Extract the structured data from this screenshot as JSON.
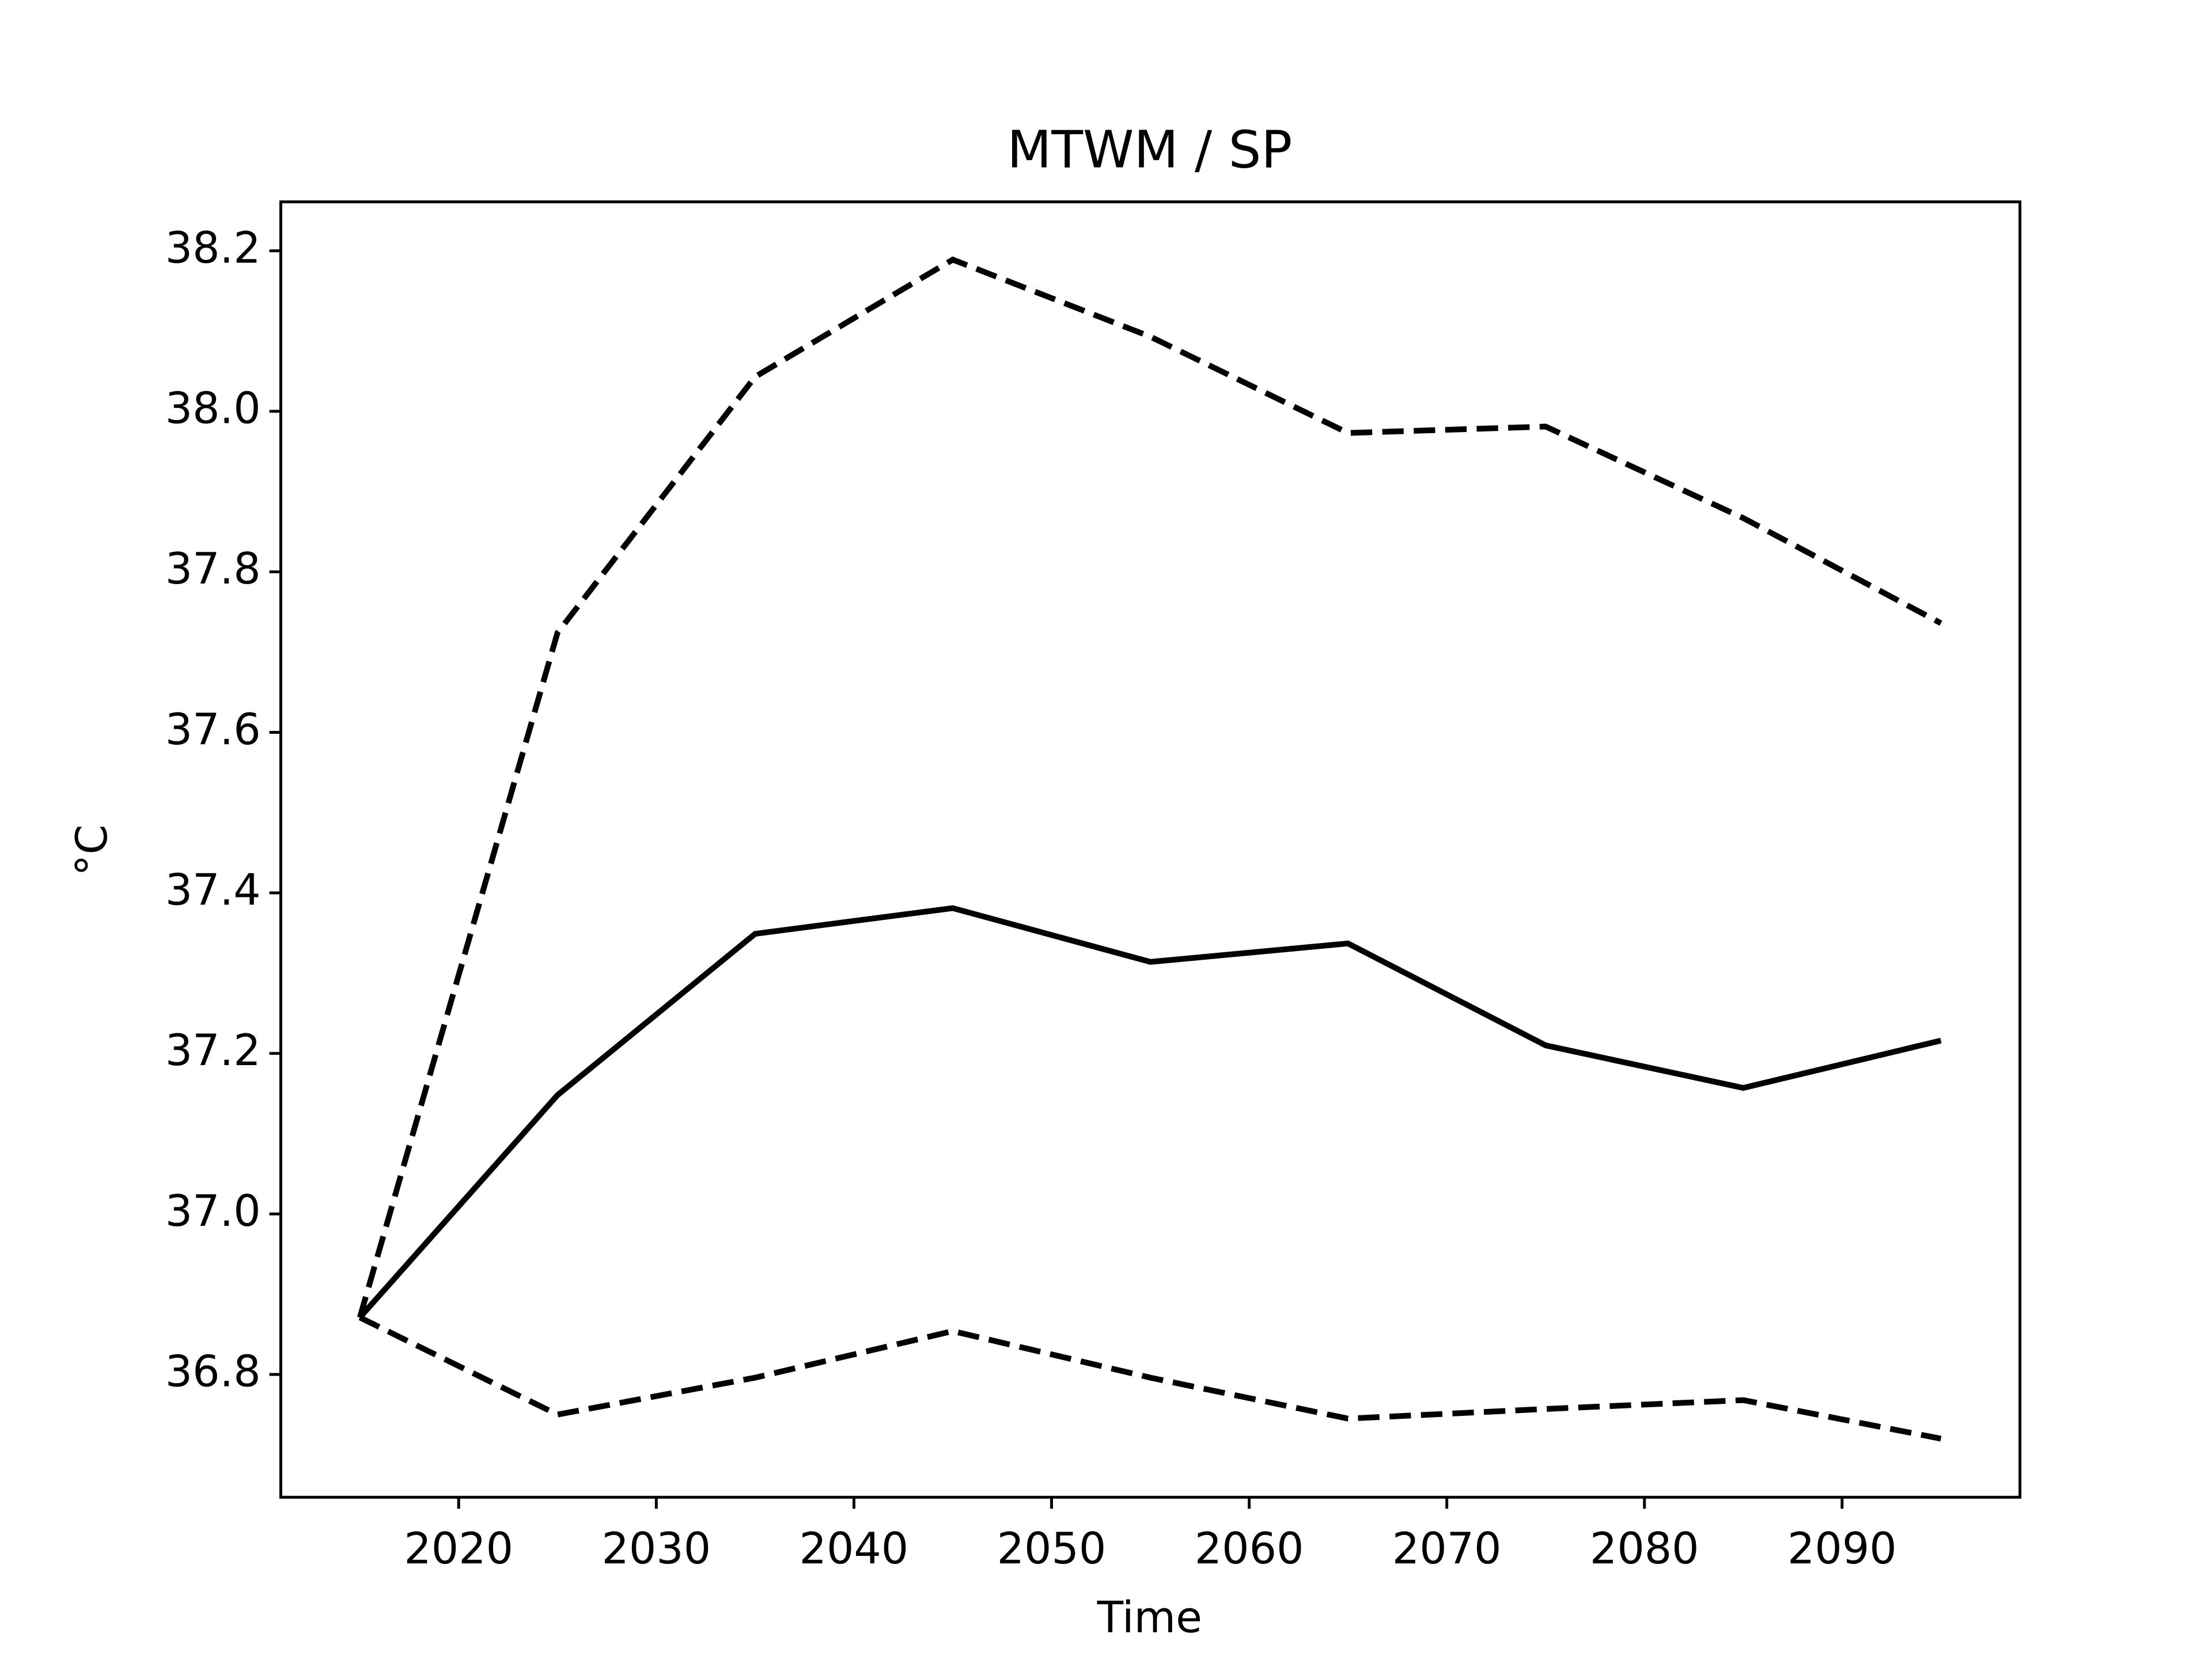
{
  "chart_data": {
    "type": "line",
    "title": "MTWM / SP",
    "xlabel": "Time",
    "ylabel": "°C",
    "x": [
      2015,
      2025,
      2035,
      2045,
      2055,
      2065,
      2075,
      2085,
      2095
    ],
    "series": [
      {
        "color": "#000000",
        "dashed": false,
        "values": [
          36.871,
          37.148,
          37.349,
          37.381,
          37.314,
          37.337,
          37.21,
          37.157,
          37.216
        ]
      },
      {
        "color": "#000000",
        "dashed": true,
        "values": [
          36.871,
          37.724,
          38.043,
          38.189,
          38.093,
          37.973,
          37.981,
          37.867,
          37.736
        ]
      },
      {
        "color": "#000000",
        "dashed": true,
        "values": [
          36.871,
          36.75,
          36.796,
          36.854,
          36.796,
          36.745,
          36.757,
          36.768,
          36.72
        ]
      }
    ],
    "xlim": [
      2011,
      2099
    ],
    "ylim": [
      36.647,
      38.261
    ],
    "xticks": [
      2020,
      2030,
      2040,
      2050,
      2060,
      2070,
      2080,
      2090
    ],
    "yticks": [
      36.8,
      {
        "value": 37,
        "label": "37.0"
      },
      37.2,
      37.4,
      37.6,
      37.8,
      {
        "value": 38,
        "label": "38.0"
      },
      38.2
    ],
    "grid": false
  }
}
